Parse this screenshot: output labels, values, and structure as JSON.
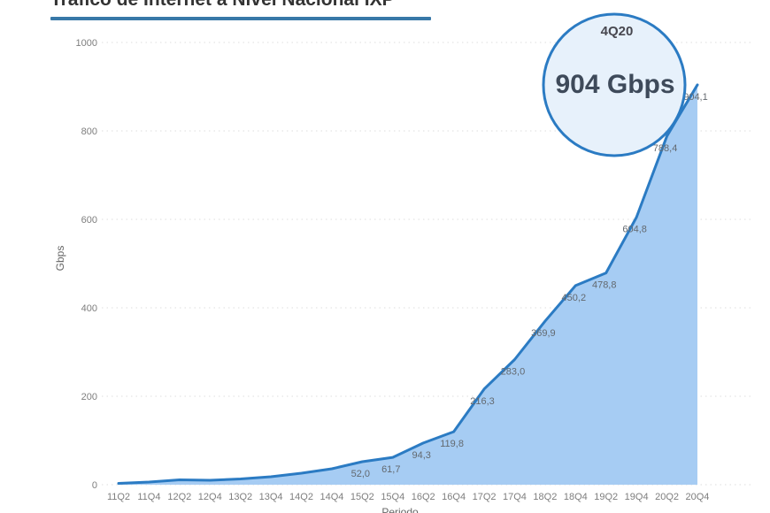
{
  "chart_data": {
    "type": "area",
    "title": "Tráfico de Internet a Nivel Nacional IXP",
    "xlabel": "Periodo",
    "ylabel": "Gbps",
    "ylim": [
      0,
      1000
    ],
    "y_ticks": [
      0,
      200,
      400,
      600,
      800,
      1000
    ],
    "grid": "horizontal-dotted",
    "legend": "none",
    "categories": [
      "11Q2",
      "11Q4",
      "12Q2",
      "12Q4",
      "13Q2",
      "13Q4",
      "14Q2",
      "14Q4",
      "15Q2",
      "15Q4",
      "16Q2",
      "16Q4",
      "17Q2",
      "17Q4",
      "18Q2",
      "18Q4",
      "19Q2",
      "19Q4",
      "20Q2",
      "20Q4"
    ],
    "values": [
      3,
      6,
      11,
      10,
      13,
      18,
      26,
      36,
      52.0,
      61.7,
      94.3,
      119.8,
      216.3,
      283.0,
      369.9,
      450.2,
      478.8,
      604.8,
      788.4,
      904.1
    ],
    "point_labels": [
      "",
      "",
      "",
      "",
      "",
      "",
      "",
      "",
      "52,0",
      "61,7",
      "94,3",
      "119,8",
      "216,3",
      "283,0",
      "369,9",
      "450,2",
      "478,8",
      "604,8",
      "788,4",
      "904,1"
    ],
    "callout": {
      "period": "4Q20",
      "value_text": "904 Gbps"
    },
    "colors": {
      "line": "#2b7bc3",
      "area_fill": "#a6ccf3",
      "callout_fill": "#e7f1fb",
      "callout_stroke": "#2b7bc3",
      "gridline": "#dedede",
      "title_underline": "#3878a8"
    }
  }
}
